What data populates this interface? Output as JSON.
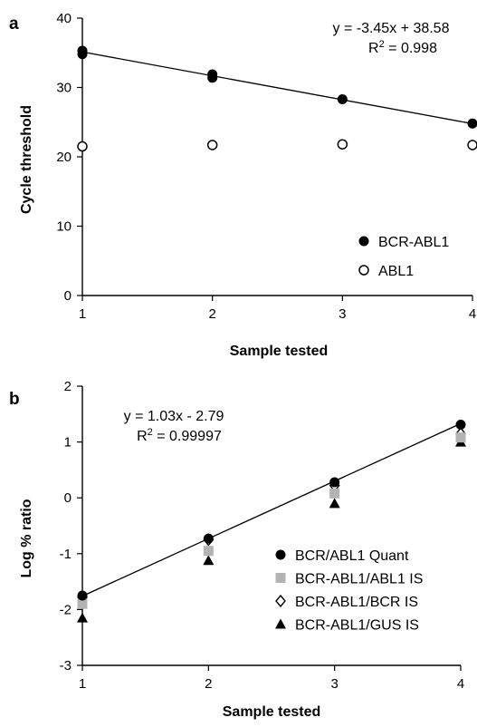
{
  "chart_data": [
    {
      "panel": "a",
      "type": "scatter",
      "xlabel": "Sample tested",
      "ylabel": "Cycle threshold",
      "xlim": [
        1,
        4
      ],
      "ylim": [
        0,
        40
      ],
      "xticks": [
        1,
        2,
        3,
        4
      ],
      "yticks": [
        0,
        10,
        20,
        30,
        40
      ],
      "equation": "y = -3.45x + 38.58",
      "r2_prefix": "R",
      "r2_sup": "2",
      "r2_value": " = 0.998",
      "legend_position": "bottom-right",
      "series": [
        {
          "name": "BCR-ABL1",
          "marker": "filled-circle",
          "color": "#000000",
          "x": [
            1,
            1,
            2,
            2,
            3,
            4
          ],
          "y": [
            35.3,
            34.8,
            31.9,
            31.4,
            28.3,
            24.8
          ]
        },
        {
          "name": "ABL1",
          "marker": "open-circle",
          "color": "#000000",
          "x": [
            1,
            2,
            3,
            4
          ],
          "y": [
            21.5,
            21.7,
            21.8,
            21.7
          ]
        }
      ],
      "fit": {
        "slope": -3.45,
        "intercept": 38.58
      }
    },
    {
      "panel": "b",
      "type": "scatter",
      "xlabel": "Sample tested",
      "ylabel": "Log % ratio",
      "xlim": [
        1,
        4
      ],
      "ylim": [
        -3,
        2
      ],
      "xticks": [
        1,
        2,
        3,
        4
      ],
      "yticks": [
        -3,
        -2,
        -1,
        0,
        1,
        2
      ],
      "equation": "y = 1.03x - 2.79",
      "r2_prefix": "R",
      "r2_sup": "2",
      "r2_value": " = 0.99997",
      "legend_position": "bottom-right",
      "series": [
        {
          "name": "BCR/ABL1 Quant",
          "marker": "filled-circle",
          "color": "#000000",
          "x": [
            1,
            2,
            3,
            4
          ],
          "y": [
            -1.75,
            -0.73,
            0.28,
            1.31
          ]
        },
        {
          "name": "BCR-ABL1/ABL1 IS",
          "marker": "gray-square",
          "color": "#b3b3b3",
          "x": [
            1,
            2,
            3,
            4
          ],
          "y": [
            -1.9,
            -0.95,
            0.08,
            1.08
          ]
        },
        {
          "name": "BCR-ABL1/BCR IS",
          "marker": "open-diamond",
          "color": "#000000",
          "x": [
            1,
            2,
            3,
            4
          ],
          "y": [
            -1.78,
            -0.75,
            0.22,
            1.15
          ]
        },
        {
          "name": "BCR-ABL1/GUS IS",
          "marker": "filled-triangle",
          "color": "#000000",
          "x": [
            1,
            2,
            3,
            4
          ],
          "y": [
            -2.15,
            -1.12,
            -0.1,
            1.0
          ]
        }
      ],
      "fit": {
        "slope": 1.03,
        "intercept": -2.79
      }
    }
  ]
}
